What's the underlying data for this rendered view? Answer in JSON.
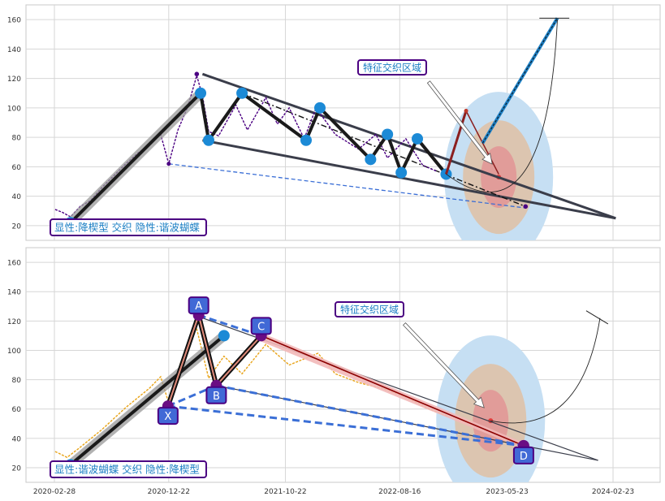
{
  "chart_data": [
    {
      "type": "line",
      "title": "",
      "xlabel": "",
      "ylabel": "",
      "ylim": [
        10,
        170
      ],
      "yticks": [
        20,
        40,
        60,
        80,
        100,
        120,
        140,
        160
      ],
      "grid": true,
      "colors": {
        "price": "#4b0082",
        "pattern_fill": "#1a1a1a",
        "wedge": "#3a3d4a",
        "dots": "#1c8ad6"
      },
      "price_series": [
        [
          "2020-03-01",
          31
        ],
        [
          "2020-03-20",
          29
        ],
        [
          "2020-04-10",
          26
        ],
        [
          "2020-05-05",
          33
        ],
        [
          "2020-06-01",
          37
        ],
        [
          "2020-07-01",
          46
        ],
        [
          "2020-08-01",
          54
        ],
        [
          "2020-09-01",
          62
        ],
        [
          "2020-10-01",
          69
        ],
        [
          "2020-11-01",
          75
        ],
        [
          "2020-12-01",
          82
        ],
        [
          "2020-12-22",
          62
        ],
        [
          "2021-01-15",
          85
        ],
        [
          "2021-02-10",
          101
        ],
        [
          "2021-03-05",
          122
        ],
        [
          "2021-03-20",
          108
        ],
        [
          "2021-04-05",
          84
        ],
        [
          "2021-05-01",
          81
        ],
        [
          "2021-06-15",
          102
        ],
        [
          "2021-07-15",
          85
        ],
        [
          "2021-09-01",
          107
        ],
        [
          "2021-10-01",
          89
        ],
        [
          "2021-11-01",
          100
        ],
        [
          "2021-12-10",
          79
        ],
        [
          "2022-01-10",
          100
        ],
        [
          "2022-03-01",
          82
        ],
        [
          "2022-05-01",
          72
        ],
        [
          "2022-06-15",
          82
        ],
        [
          "2022-07-15",
          66
        ],
        [
          "2022-09-01",
          79
        ],
        [
          "2022-10-15",
          61
        ],
        [
          "2022-11-20",
          57
        ]
      ],
      "pattern_pivots": [
        {
          "date": "2020-04-10",
          "value": 22
        },
        {
          "date": "2021-03-15",
          "value": 110
        },
        {
          "date": "2021-04-05",
          "value": 78
        },
        {
          "date": "2021-07-01",
          "value": 110
        },
        {
          "date": "2021-12-15",
          "value": 78
        },
        {
          "date": "2022-01-20",
          "value": 100
        },
        {
          "date": "2022-06-01",
          "value": 65
        },
        {
          "date": "2022-07-15",
          "value": 82
        },
        {
          "date": "2022-08-20",
          "value": 56
        },
        {
          "date": "2022-10-01",
          "value": 79
        },
        {
          "date": "2022-12-15",
          "value": 55
        }
      ],
      "wedge_upper": [
        [
          "2021-03-20",
          123
        ],
        [
          "2024-03-01",
          25
        ]
      ],
      "wedge_lower": [
        [
          "2021-03-20",
          78
        ],
        [
          "2024-03-01",
          25
        ]
      ],
      "projection_target": {
        "date": "2023-05-01",
        "value": 53
      },
      "projection_peak": {
        "date": "2023-10-01",
        "value": 161
      },
      "annotation_label": "特征交织区域",
      "caption": "显性:降楔型 交织 隐性:谐波蝴蝶"
    },
    {
      "type": "line",
      "title": "",
      "xlabel": "",
      "ylabel": "",
      "ylim": [
        10,
        170
      ],
      "yticks": [
        20,
        40,
        60,
        80,
        100,
        120,
        140,
        160
      ],
      "xticks": [
        "2020-02-28",
        "2020-12-22",
        "2021-10-22",
        "2022-08-16",
        "2023-05-23",
        "2024-02-23"
      ],
      "grid": true,
      "colors": {
        "price": "#e8a317",
        "harmonic": "#8b0000",
        "harmonic_fill": "#f2b8b8",
        "dashed": "#3b6fd6"
      },
      "harmonic_points": [
        {
          "label": "X",
          "date": "2020-12-20",
          "value": 62
        },
        {
          "label": "A",
          "date": "2021-03-10",
          "value": 124
        },
        {
          "label": "B",
          "date": "2021-04-25",
          "value": 76
        },
        {
          "label": "C",
          "date": "2021-08-20",
          "value": 110
        },
        {
          "label": "D",
          "date": "2023-07-05",
          "value": 35
        }
      ],
      "harmonic_point_labels": [
        "X",
        "A",
        "B",
        "C",
        "D"
      ],
      "price_series": [
        [
          "2020-03-01",
          31
        ],
        [
          "2020-04-01",
          27
        ],
        [
          "2020-05-01",
          33
        ],
        [
          "2020-07-01",
          46
        ],
        [
          "2020-09-01",
          61
        ],
        [
          "2020-11-01",
          74
        ],
        [
          "2020-12-01",
          82
        ],
        [
          "2020-12-22",
          64
        ],
        [
          "2021-01-20",
          90
        ],
        [
          "2021-03-01",
          119
        ],
        [
          "2021-04-05",
          81
        ],
        [
          "2021-05-15",
          96
        ],
        [
          "2021-07-01",
          84
        ],
        [
          "2021-09-01",
          104
        ],
        [
          "2021-11-01",
          90
        ],
        [
          "2022-01-15",
          98
        ],
        [
          "2022-03-01",
          84
        ],
        [
          "2022-05-01",
          78
        ],
        [
          "2022-07-01",
          74
        ],
        [
          "2022-09-01",
          68
        ],
        [
          "2022-11-01",
          60
        ],
        [
          "2022-12-20",
          55
        ]
      ],
      "annotation_label": "特征交织区域",
      "caption": "显性:谐波蝴蝶 交织 隐性:降楔型"
    }
  ]
}
